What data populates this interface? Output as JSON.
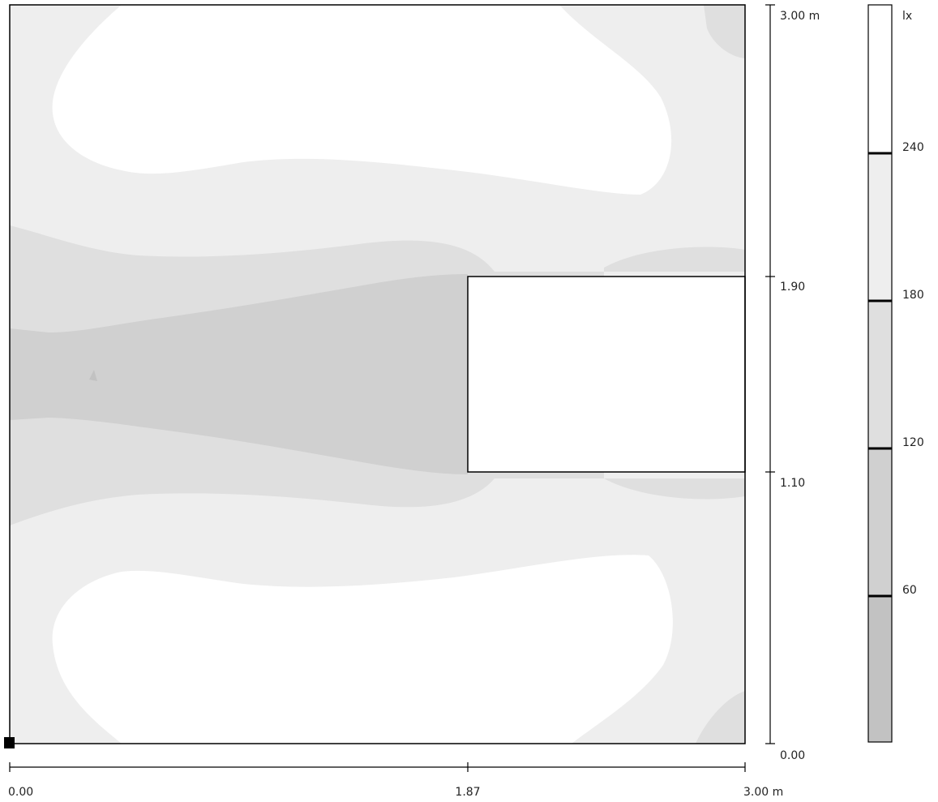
{
  "colors": {
    "background": "#ffffff",
    "band_0_60": "#c2c2c2",
    "band_60_120": "#d0d0d0",
    "band_120_180": "#dfdfdf",
    "band_180_240": "#eeeeee",
    "band_240_plus": "#ffffff",
    "line": "#000000"
  },
  "plan": {
    "width_m": 3.0,
    "height_m": 3.0,
    "obstacle": {
      "x_from_m": 1.87,
      "x_to_m": 3.0,
      "y_from_m": 1.1,
      "y_to_m": 1.9
    },
    "origin_marker_icon": "square-marker-icon"
  },
  "x_axis": {
    "ticks": [
      {
        "value": 0.0,
        "label": "0.00"
      },
      {
        "value": 1.87,
        "label": "1.87"
      },
      {
        "value": 3.0,
        "label": "3.00 m"
      }
    ]
  },
  "y_axis": {
    "ticks": [
      {
        "value": 0.0,
        "label": "0.00"
      },
      {
        "value": 1.1,
        "label": "1.10"
      },
      {
        "value": 1.9,
        "label": "1.90"
      },
      {
        "value": 3.0,
        "label": "3.00 m"
      }
    ]
  },
  "legend": {
    "unit": "lx",
    "min": 0,
    "max": 300,
    "levels": [
      {
        "value": 240,
        "label": "240"
      },
      {
        "value": 180,
        "label": "180"
      },
      {
        "value": 120,
        "label": "120"
      },
      {
        "value": 60,
        "label": "60"
      }
    ]
  }
}
